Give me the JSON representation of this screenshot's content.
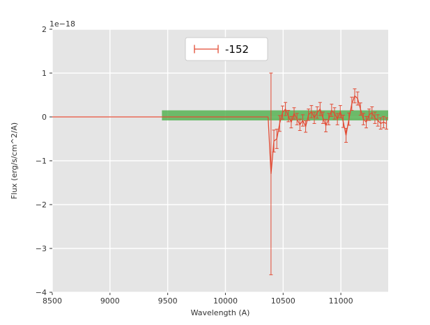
{
  "chart_data": {
    "type": "line",
    "title": "",
    "offset_text": "1e−18",
    "xlabel": "Wavelength (A)",
    "ylabel": "Flux (erg/s/cm^2/A)",
    "xlim": [
      8500,
      11410
    ],
    "ylim": [
      -4,
      2
    ],
    "xticks": [
      8500,
      9000,
      9500,
      10000,
      10500,
      11000
    ],
    "yticks": [
      -4,
      -3,
      -2,
      -1,
      0,
      1,
      2
    ],
    "grid": true,
    "plot_bg": "#e5e5e5",
    "grid_color": "#ffffff",
    "tick_color": "#333333",
    "band": {
      "x0": 9450,
      "x1": 11410,
      "y0": -0.08,
      "y1": 0.15,
      "color": "#4daf4a",
      "opacity": 0.8
    },
    "legend": {
      "label": "-152",
      "position": "upper center"
    },
    "series": [
      {
        "name": "-152",
        "color": "#e24a33",
        "points": [
          [
            8500,
            0,
            0
          ],
          [
            10370,
            0,
            0
          ],
          [
            10395,
            -1.3,
            2.3
          ],
          [
            10420,
            -0.55,
            0.25
          ],
          [
            10445,
            -0.5,
            0.22
          ],
          [
            10470,
            -0.15,
            0.18
          ],
          [
            10495,
            0.1,
            0.15
          ],
          [
            10520,
            0.18,
            0.15
          ],
          [
            10545,
            0.02,
            0.13
          ],
          [
            10570,
            -0.12,
            0.13
          ],
          [
            10595,
            0.08,
            0.13
          ],
          [
            10620,
            -0.05,
            0.13
          ],
          [
            10645,
            -0.18,
            0.13
          ],
          [
            10670,
            -0.08,
            0.13
          ],
          [
            10695,
            -0.22,
            0.13
          ],
          [
            10720,
            0.05,
            0.13
          ],
          [
            10745,
            0.12,
            0.14
          ],
          [
            10770,
            -0.02,
            0.13
          ],
          [
            10795,
            0.1,
            0.13
          ],
          [
            10820,
            0.18,
            0.15
          ],
          [
            10845,
            -0.02,
            0.13
          ],
          [
            10870,
            -0.2,
            0.14
          ],
          [
            10895,
            -0.05,
            0.13
          ],
          [
            10920,
            0.15,
            0.14
          ],
          [
            10945,
            0.08,
            0.13
          ],
          [
            10970,
            -0.05,
            0.13
          ],
          [
            10995,
            0.12,
            0.14
          ],
          [
            11020,
            -0.1,
            0.14
          ],
          [
            11045,
            -0.42,
            0.16
          ],
          [
            11070,
            -0.05,
            0.14
          ],
          [
            11095,
            0.3,
            0.15
          ],
          [
            11120,
            0.48,
            0.16
          ],
          [
            11145,
            0.42,
            0.15
          ],
          [
            11170,
            0.18,
            0.14
          ],
          [
            11195,
            -0.05,
            0.13
          ],
          [
            11220,
            -0.12,
            0.13
          ],
          [
            11245,
            0.05,
            0.13
          ],
          [
            11270,
            0.1,
            0.13
          ],
          [
            11295,
            -0.02,
            0.13
          ],
          [
            11320,
            -0.08,
            0.13
          ],
          [
            11345,
            -0.15,
            0.13
          ],
          [
            11370,
            -0.12,
            0.13
          ],
          [
            11395,
            -0.15,
            0.13
          ]
        ]
      }
    ]
  }
}
